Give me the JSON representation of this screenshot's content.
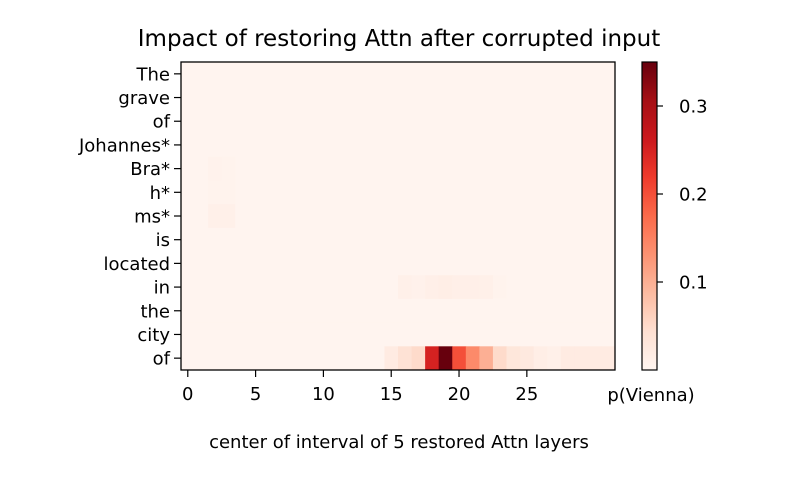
{
  "chart_data": {
    "type": "heatmap",
    "title": "Impact of restoring Attn after corrupted input",
    "xlabel": "center of interval of 5 restored Attn layers",
    "ylabel": "",
    "x_ticks": [
      0,
      5,
      10,
      15,
      20,
      25
    ],
    "xlim": [
      -0.5,
      31.5
    ],
    "tokens": [
      "The",
      "grave",
      "of",
      "Johannes*",
      "Bra*",
      "h*",
      "ms*",
      "is",
      "located",
      "in",
      "the",
      "city",
      "of"
    ],
    "colormap": "Reds",
    "colorbar": {
      "label": "p(Vienna)",
      "ticks": [
        0.1,
        0.2,
        0.3
      ],
      "vmin": 0.0,
      "vmax": 0.35
    },
    "values": [
      [
        0.002,
        0.002,
        0.002,
        0.002,
        0.002,
        0.002,
        0.002,
        0.002,
        0.002,
        0.002,
        0.002,
        0.002,
        0.002,
        0.002,
        0.002,
        0.002,
        0.002,
        0.002,
        0.002,
        0.002,
        0.002,
        0.002,
        0.002,
        0.002,
        0.002,
        0.002,
        0.002,
        0.002,
        0.002,
        0.002,
        0.002,
        0.002
      ],
      [
        0.002,
        0.002,
        0.002,
        0.002,
        0.002,
        0.002,
        0.002,
        0.002,
        0.002,
        0.002,
        0.002,
        0.002,
        0.002,
        0.002,
        0.002,
        0.002,
        0.002,
        0.002,
        0.002,
        0.002,
        0.002,
        0.002,
        0.002,
        0.002,
        0.002,
        0.002,
        0.002,
        0.002,
        0.002,
        0.002,
        0.002,
        0.002
      ],
      [
        0.002,
        0.002,
        0.002,
        0.002,
        0.002,
        0.002,
        0.002,
        0.002,
        0.002,
        0.002,
        0.002,
        0.002,
        0.002,
        0.002,
        0.002,
        0.002,
        0.002,
        0.002,
        0.002,
        0.002,
        0.002,
        0.002,
        0.002,
        0.002,
        0.002,
        0.002,
        0.002,
        0.002,
        0.002,
        0.002,
        0.002,
        0.002
      ],
      [
        0.002,
        0.002,
        0.002,
        0.002,
        0.002,
        0.002,
        0.002,
        0.002,
        0.002,
        0.002,
        0.002,
        0.002,
        0.002,
        0.002,
        0.002,
        0.002,
        0.002,
        0.002,
        0.002,
        0.002,
        0.002,
        0.002,
        0.002,
        0.002,
        0.002,
        0.002,
        0.002,
        0.002,
        0.002,
        0.002,
        0.002,
        0.002
      ],
      [
        0.002,
        0.002,
        0.006,
        0.004,
        0.002,
        0.002,
        0.002,
        0.002,
        0.002,
        0.002,
        0.002,
        0.002,
        0.002,
        0.002,
        0.002,
        0.002,
        0.002,
        0.002,
        0.002,
        0.002,
        0.002,
        0.002,
        0.002,
        0.002,
        0.002,
        0.002,
        0.002,
        0.002,
        0.002,
        0.002,
        0.002,
        0.002
      ],
      [
        0.002,
        0.002,
        0.004,
        0.004,
        0.002,
        0.002,
        0.002,
        0.002,
        0.002,
        0.002,
        0.002,
        0.002,
        0.002,
        0.002,
        0.002,
        0.002,
        0.002,
        0.002,
        0.002,
        0.002,
        0.002,
        0.002,
        0.002,
        0.002,
        0.002,
        0.002,
        0.002,
        0.002,
        0.002,
        0.002,
        0.002,
        0.002
      ],
      [
        0.002,
        0.002,
        0.01,
        0.01,
        0.002,
        0.002,
        0.002,
        0.002,
        0.002,
        0.002,
        0.002,
        0.002,
        0.002,
        0.002,
        0.002,
        0.002,
        0.002,
        0.002,
        0.002,
        0.002,
        0.002,
        0.002,
        0.002,
        0.002,
        0.002,
        0.002,
        0.002,
        0.002,
        0.002,
        0.002,
        0.002,
        0.002
      ],
      [
        0.002,
        0.002,
        0.002,
        0.002,
        0.002,
        0.002,
        0.002,
        0.002,
        0.002,
        0.002,
        0.002,
        0.002,
        0.002,
        0.002,
        0.002,
        0.002,
        0.002,
        0.002,
        0.002,
        0.002,
        0.002,
        0.002,
        0.002,
        0.002,
        0.002,
        0.002,
        0.002,
        0.002,
        0.002,
        0.002,
        0.002,
        0.002
      ],
      [
        0.002,
        0.002,
        0.002,
        0.002,
        0.002,
        0.002,
        0.002,
        0.002,
        0.002,
        0.002,
        0.002,
        0.002,
        0.002,
        0.002,
        0.002,
        0.002,
        0.002,
        0.002,
        0.002,
        0.002,
        0.002,
        0.002,
        0.002,
        0.002,
        0.002,
        0.002,
        0.002,
        0.002,
        0.002,
        0.002,
        0.002,
        0.002
      ],
      [
        0.002,
        0.002,
        0.002,
        0.002,
        0.002,
        0.002,
        0.002,
        0.002,
        0.002,
        0.002,
        0.002,
        0.002,
        0.002,
        0.002,
        0.002,
        0.002,
        0.01,
        0.008,
        0.012,
        0.014,
        0.012,
        0.012,
        0.01,
        0.004,
        0.002,
        0.002,
        0.002,
        0.002,
        0.002,
        0.002,
        0.002,
        0.002
      ],
      [
        0.002,
        0.002,
        0.002,
        0.002,
        0.002,
        0.002,
        0.002,
        0.002,
        0.002,
        0.002,
        0.002,
        0.002,
        0.002,
        0.002,
        0.002,
        0.002,
        0.002,
        0.002,
        0.002,
        0.002,
        0.002,
        0.002,
        0.002,
        0.002,
        0.002,
        0.002,
        0.002,
        0.002,
        0.002,
        0.002,
        0.002,
        0.002
      ],
      [
        0.002,
        0.002,
        0.002,
        0.002,
        0.002,
        0.002,
        0.002,
        0.002,
        0.002,
        0.002,
        0.002,
        0.002,
        0.002,
        0.002,
        0.002,
        0.002,
        0.002,
        0.002,
        0.002,
        0.002,
        0.002,
        0.002,
        0.002,
        0.002,
        0.002,
        0.002,
        0.002,
        0.002,
        0.002,
        0.002,
        0.002,
        0.002
      ],
      [
        0.002,
        0.002,
        0.002,
        0.002,
        0.002,
        0.002,
        0.002,
        0.002,
        0.002,
        0.002,
        0.002,
        0.002,
        0.002,
        0.002,
        0.002,
        0.02,
        0.04,
        0.05,
        0.25,
        0.35,
        0.2,
        0.14,
        0.1,
        0.05,
        0.03,
        0.025,
        0.015,
        0.01,
        0.02,
        0.02,
        0.02,
        0.02
      ]
    ]
  }
}
